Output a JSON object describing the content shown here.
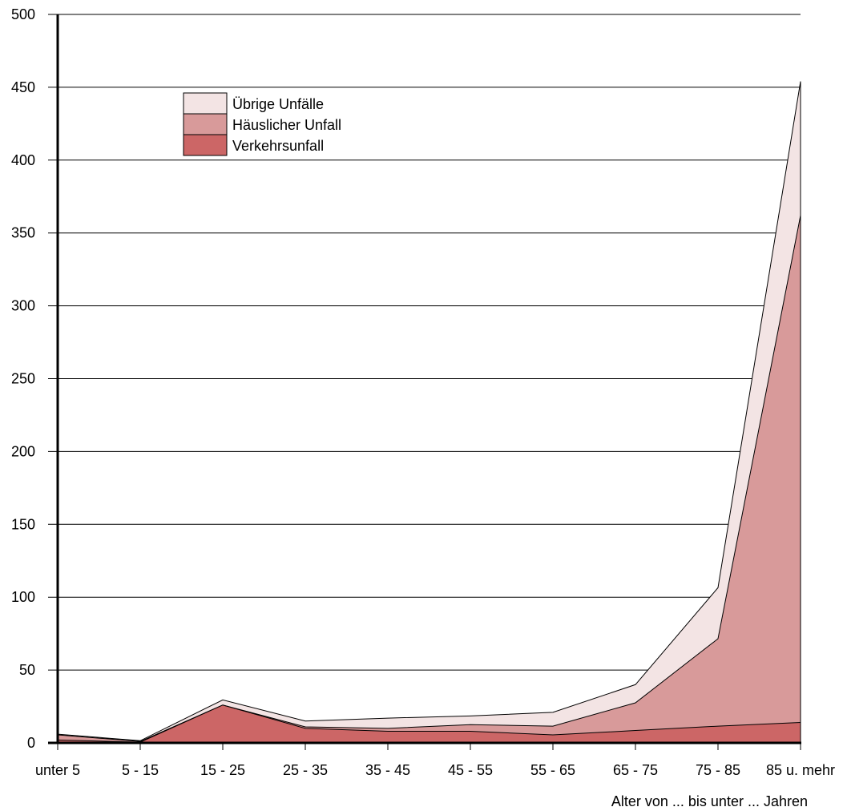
{
  "chart_data": {
    "type": "area",
    "stacked": true,
    "title": "",
    "xlabel": "Alter von ... bis unter ... Jahren",
    "ylabel": "",
    "ylim": [
      0,
      500
    ],
    "yticks": [
      0,
      50,
      100,
      150,
      200,
      250,
      300,
      350,
      400,
      450,
      500
    ],
    "grid": true,
    "legend_position": "top-left",
    "categories": [
      "unter 5",
      "5 - 15",
      "15 - 25",
      "25 - 35",
      "35 - 45",
      "45 - 55",
      "55 - 65",
      "65 - 75",
      "75 - 85",
      "85 u. mehr"
    ],
    "series": [
      {
        "name": "Verkehrsunfall",
        "color": "#cc6666",
        "values": [
          2,
          0.5,
          26,
          10,
          8,
          8,
          5.5,
          8.5,
          11.5,
          14
        ]
      },
      {
        "name": "Häuslicher Unfall",
        "color": "#d89a9a",
        "values": [
          3.5,
          0.5,
          0,
          1,
          2,
          4.5,
          6,
          19,
          60,
          348
        ]
      },
      {
        "name": "Übrige Unfälle",
        "color": "#f3e4e4",
        "values": [
          0.5,
          0.5,
          3.5,
          4,
          7,
          6,
          9.5,
          12.5,
          35,
          92
        ]
      }
    ],
    "legend": [
      {
        "name": "Übrige Unfälle",
        "color": "#f3e4e4"
      },
      {
        "name": "Häuslicher Unfall",
        "color": "#d89a9a"
      },
      {
        "name": "Verkehrsunfall",
        "color": "#cc6666"
      }
    ]
  }
}
